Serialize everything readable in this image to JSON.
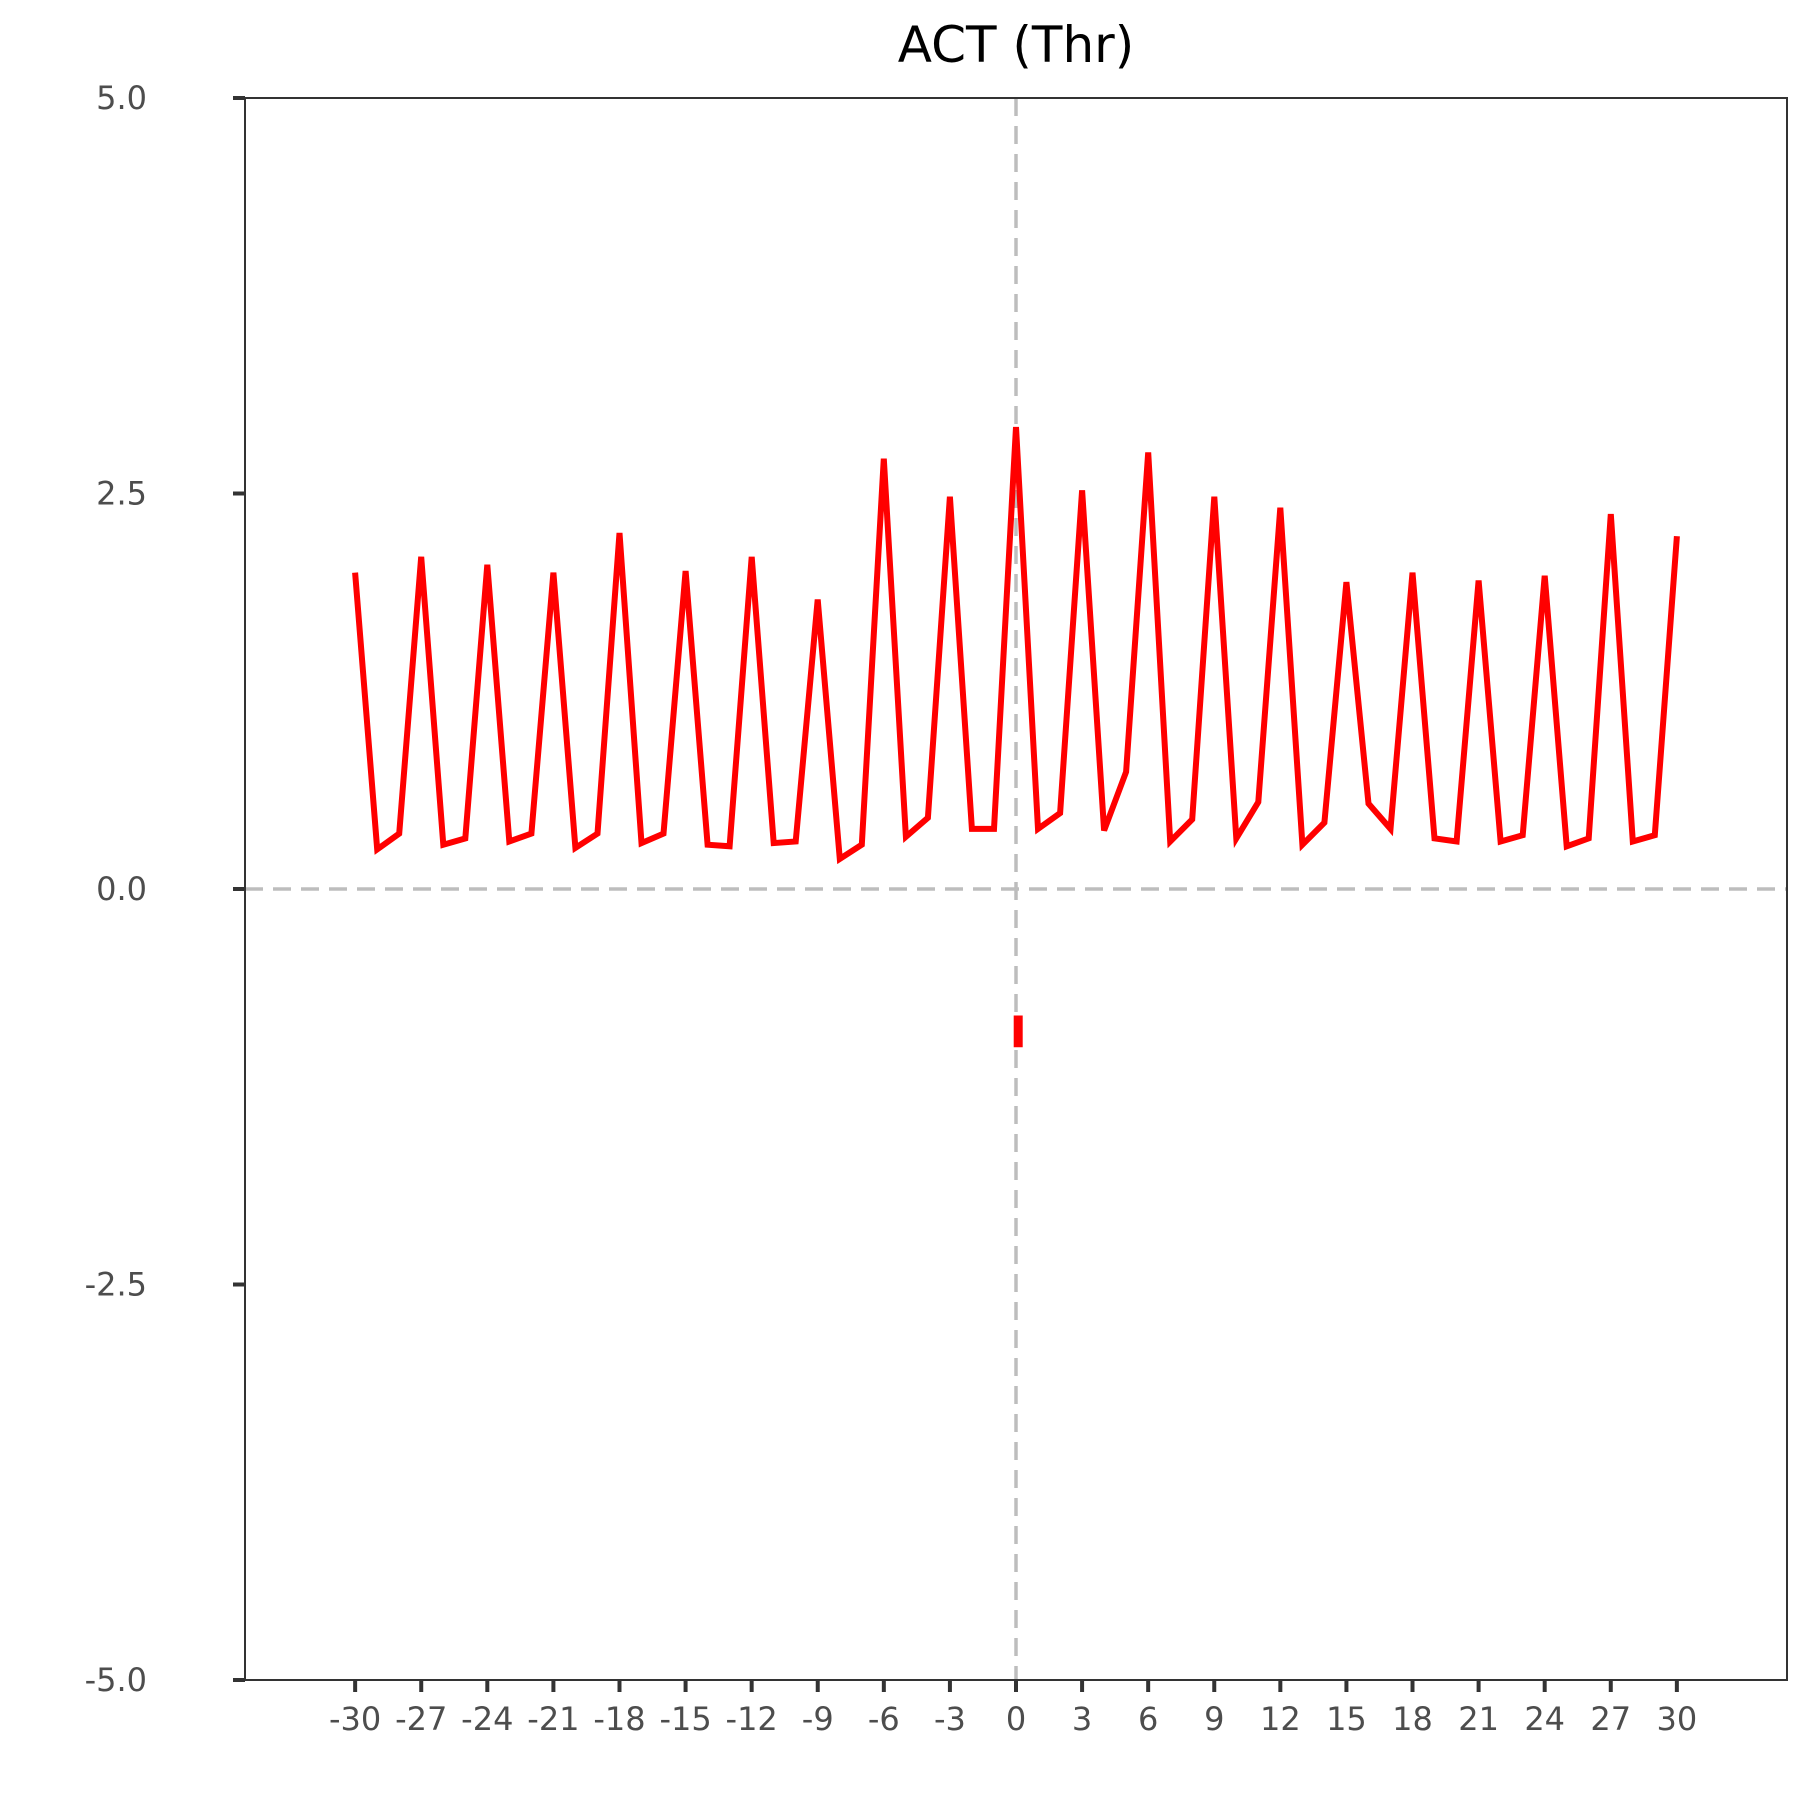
{
  "chart_data": {
    "type": "line",
    "title": "ACT (Thr)",
    "xlabel": "",
    "ylabel": "",
    "xlim": [
      -35,
      35
    ],
    "ylim": [
      -5,
      5
    ],
    "x_ticks": [
      -30,
      -27,
      -24,
      -21,
      -18,
      -15,
      -12,
      -9,
      -6,
      -3,
      0,
      3,
      6,
      9,
      12,
      15,
      18,
      21,
      24,
      27,
      30
    ],
    "y_ticks": [
      5.0,
      2.5,
      0.0,
      -2.5,
      -5.0
    ],
    "y_tick_labels": [
      "5.0",
      "2.5",
      "0.0",
      "-2.5",
      "-5.0"
    ],
    "reference_lines": {
      "x": 0,
      "y": 0,
      "style": "dashed",
      "color": "#bdbdbd"
    },
    "grid": false,
    "legend": "none",
    "series": [
      {
        "color": "#ff0000",
        "x": [
          -30,
          -29,
          -28,
          -27,
          -26,
          -25,
          -24,
          -23,
          -22,
          -21,
          -20,
          -19,
          -18,
          -17,
          -16,
          -15,
          -14,
          -13,
          -12,
          -11,
          -10,
          -9,
          -8,
          -7,
          -6,
          -5,
          -4,
          -3,
          -2,
          -1,
          0,
          1,
          2,
          3,
          4,
          5,
          6,
          7,
          8,
          9,
          10,
          11,
          12,
          13,
          14,
          15,
          16,
          17,
          18,
          19,
          20,
          21,
          22,
          23,
          24,
          25,
          26,
          27,
          28,
          29,
          30
        ],
        "y": [
          2.0,
          0.25,
          0.35,
          2.1,
          0.28,
          0.32,
          2.05,
          0.3,
          0.35,
          2.0,
          0.26,
          0.35,
          2.25,
          0.29,
          0.35,
          2.01,
          0.28,
          0.27,
          2.1,
          0.29,
          0.3,
          1.83,
          0.19,
          0.28,
          2.72,
          0.33,
          0.45,
          2.48,
          0.38,
          0.38,
          2.92,
          0.38,
          0.48,
          2.52,
          0.37,
          0.74,
          2.76,
          0.3,
          0.44,
          2.48,
          0.32,
          0.55,
          2.41,
          0.28,
          0.42,
          1.94,
          0.54,
          0.38,
          2.0,
          0.32,
          0.3,
          1.95,
          0.3,
          0.34,
          1.98,
          0.27,
          0.32,
          2.37,
          0.3,
          0.34,
          2.23
        ]
      }
    ],
    "extra_marks": [
      {
        "x": 0.1,
        "y_from": -0.8,
        "y_to": -1.0,
        "color": "#ff0000"
      }
    ]
  }
}
